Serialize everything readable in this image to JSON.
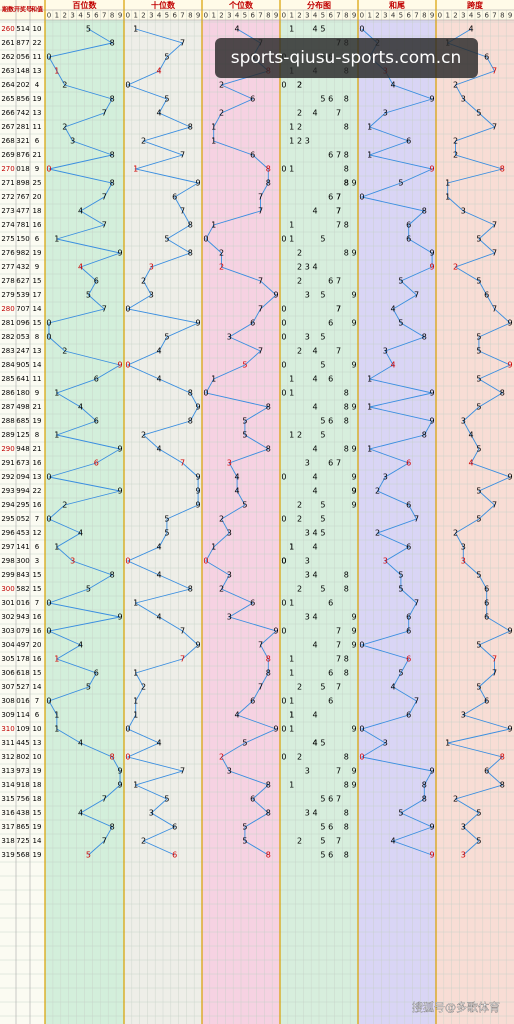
{
  "table": {
    "headers": [
      "期数",
      "开奖号",
      "和值"
    ],
    "zones": [
      "百位数",
      "十位数",
      "个位数",
      "分布图",
      "和尾",
      "跨度"
    ],
    "digit_labels": [
      0,
      1,
      2,
      3,
      4,
      5,
      6,
      7,
      8,
      9
    ],
    "issues": [
      "260",
      "261",
      "262",
      "263",
      "264",
      "265",
      "266",
      "267",
      "268",
      "269",
      "270",
      "271",
      "272",
      "273",
      "274",
      "275",
      "276",
      "277",
      "278",
      "279",
      "280",
      "281",
      "282",
      "283",
      "284",
      "285",
      "286",
      "287",
      "288",
      "289",
      "290",
      "291",
      "292",
      "293",
      "294",
      "295",
      "296",
      "297",
      "298",
      "299",
      "300",
      "301",
      "302",
      "303",
      "304",
      "305",
      "306",
      "307",
      "308",
      "309",
      "310",
      "311",
      "312",
      "313",
      "314",
      "315",
      "316",
      "317",
      "318",
      "319"
    ],
    "draws": [
      [
        5,
        1,
        4
      ],
      [
        8,
        7,
        7
      ],
      [
        0,
        5,
        6
      ],
      [
        1,
        4,
        8
      ],
      [
        2,
        0,
        2
      ],
      [
        8,
        5,
        6
      ],
      [
        7,
        4,
        2
      ],
      [
        2,
        8,
        1
      ],
      [
        3,
        2,
        1
      ],
      [
        8,
        7,
        6
      ],
      [
        0,
        1,
        8
      ],
      [
        8,
        9,
        8
      ],
      [
        7,
        6,
        7
      ],
      [
        4,
        7,
        7
      ],
      [
        7,
        8,
        1
      ],
      [
        1,
        5,
        0
      ],
      [
        9,
        8,
        2
      ],
      [
        4,
        3,
        2
      ],
      [
        6,
        2,
        7
      ],
      [
        5,
        3,
        9
      ],
      [
        7,
        0,
        7
      ],
      [
        0,
        9,
        6
      ],
      [
        0,
        5,
        3
      ],
      [
        2,
        4,
        7
      ],
      [
        9,
        0,
        5
      ],
      [
        6,
        4,
        1
      ],
      [
        1,
        8,
        0
      ],
      [
        4,
        9,
        8
      ],
      [
        6,
        8,
        5
      ],
      [
        1,
        2,
        5
      ],
      [
        9,
        4,
        8
      ],
      [
        6,
        7,
        3
      ],
      [
        0,
        9,
        4
      ],
      [
        9,
        9,
        4
      ],
      [
        2,
        9,
        5
      ],
      [
        0,
        5,
        2
      ],
      [
        4,
        5,
        3
      ],
      [
        1,
        4,
        1
      ],
      [
        3,
        0,
        0
      ],
      [
        8,
        4,
        3
      ],
      [
        5,
        8,
        2
      ],
      [
        0,
        1,
        6
      ],
      [
        9,
        4,
        3
      ],
      [
        0,
        7,
        9
      ],
      [
        4,
        9,
        7
      ],
      [
        1,
        7,
        8
      ],
      [
        6,
        1,
        8
      ],
      [
        5,
        2,
        7
      ],
      [
        0,
        1,
        6
      ],
      [
        1,
        1,
        4
      ],
      [
        1,
        0,
        9
      ],
      [
        4,
        4,
        5
      ],
      [
        8,
        0,
        2
      ],
      [
        9,
        7,
        3
      ],
      [
        9,
        1,
        8
      ],
      [
        7,
        5,
        6
      ],
      [
        4,
        3,
        8
      ],
      [
        8,
        6,
        5
      ],
      [
        7,
        2,
        5
      ],
      [
        5,
        6,
        8
      ]
    ],
    "sums": [
      10,
      22,
      11,
      13,
      4,
      19,
      13,
      11,
      6,
      21,
      9,
      25,
      20,
      18,
      16,
      6,
      19,
      9,
      15,
      17,
      14,
      15,
      8,
      13,
      14,
      11,
      9,
      21,
      19,
      8,
      21,
      16,
      13,
      22,
      16,
      7,
      12,
      6,
      3,
      15,
      15,
      7,
      16,
      16,
      20,
      16,
      15,
      14,
      7,
      6,
      10,
      13,
      10,
      19,
      18,
      18,
      15,
      19,
      14,
      19
    ],
    "sum_tails": [
      0,
      2,
      1,
      3,
      4,
      9,
      3,
      1,
      6,
      1,
      9,
      5,
      0,
      8,
      6,
      6,
      9,
      9,
      5,
      7,
      4,
      5,
      8,
      3,
      4,
      1,
      9,
      1,
      9,
      8,
      1,
      6,
      3,
      2,
      6,
      7,
      2,
      6,
      3,
      5,
      5,
      7,
      6,
      6,
      0,
      6,
      5,
      4,
      7,
      6,
      0,
      3,
      0,
      9,
      8,
      8,
      5,
      9,
      4,
      9
    ],
    "spans": [
      4,
      1,
      6,
      7,
      2,
      3,
      5,
      7,
      2,
      2,
      8,
      1,
      1,
      3,
      7,
      5,
      7,
      2,
      5,
      6,
      7,
      9,
      5,
      5,
      9,
      5,
      8,
      5,
      3,
      4,
      5,
      4,
      9,
      5,
      7,
      5,
      2,
      3,
      3,
      5,
      6,
      6,
      6,
      9,
      5,
      7,
      7,
      5,
      6,
      3,
      9,
      1,
      8,
      6,
      8,
      2,
      5,
      3,
      5,
      3
    ],
    "banner": "sports-qiusu-sports.com.cn",
    "watermark": "搜狐号@多歌体育"
  }
}
